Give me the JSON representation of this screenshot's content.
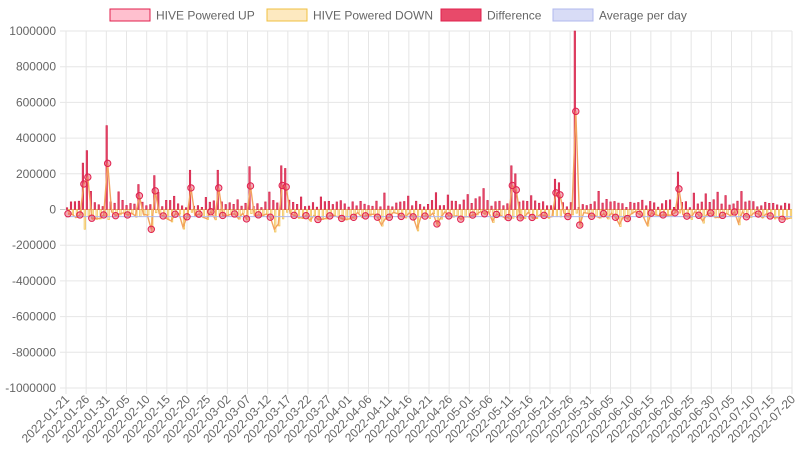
{
  "chart_data": {
    "type": "bar",
    "title": "",
    "xlabel": "",
    "ylabel": "",
    "ylim": [
      -1000000,
      1000000
    ],
    "y_ticks": [
      1000000,
      800000,
      600000,
      400000,
      200000,
      0,
      -200000,
      -400000,
      -600000,
      -800000,
      -1000000
    ],
    "y_tick_labels": [
      "1000000",
      "800000",
      "600000",
      "400000",
      "200000",
      "0",
      "-200000",
      "-400000",
      "-600000",
      "-800000",
      "-1000000"
    ],
    "x_tick_labels": [
      "2022-01-21",
      "2022-01-26",
      "2022-01-31",
      "2022-02-05",
      "2022-02-10",
      "2022-02-15",
      "2022-02-20",
      "2022-02-25",
      "2022-03-02",
      "2022-03-07",
      "2022-03-12",
      "2022-03-17",
      "2022-03-22",
      "2022-03-27",
      "2022-04-01",
      "2022-04-06",
      "2022-04-11",
      "2022-04-16",
      "2022-04-21",
      "2022-04-26",
      "2022-05-01",
      "2022-05-06",
      "2022-05-11",
      "2022-05-16",
      "2022-05-21",
      "2022-05-26",
      "2022-05-31",
      "2022-06-05",
      "2022-06-10",
      "2022-06-15",
      "2022-06-20",
      "2022-06-25",
      "2022-06-30",
      "2022-07-05",
      "2022-07-10",
      "2022-07-15",
      "2022-07-20"
    ],
    "grid": true,
    "legend_position": "top",
    "start_date": "2022-01-21",
    "num_days": 183,
    "series": [
      {
        "name": "HIVE Powered UP",
        "type": "bar",
        "color": "#e0204d",
        "fill": "#ffc0cf"
      },
      {
        "name": "HIVE Powered DOWN",
        "type": "bar",
        "color": "#f0c040",
        "fill": "#fde9c0"
      },
      {
        "name": "Difference",
        "type": "bar",
        "color": "#e0204d",
        "fill": "#e84a6a"
      },
      {
        "name": "Average per day",
        "type": "line",
        "color": "#b0b8ee",
        "fill": "#d8dcf6"
      }
    ],
    "average_value": -40000,
    "spikes_up": [
      {
        "date": "2022-01-25",
        "value": 260000
      },
      {
        "date": "2022-01-26",
        "value": 330000
      },
      {
        "date": "2022-01-31",
        "value": 470000
      },
      {
        "date": "2022-02-08",
        "value": 140000
      },
      {
        "date": "2022-02-12",
        "value": 190000
      },
      {
        "date": "2022-02-21",
        "value": 220000
      },
      {
        "date": "2022-02-28",
        "value": 220000
      },
      {
        "date": "2022-03-08",
        "value": 240000
      },
      {
        "date": "2022-03-16",
        "value": 245000
      },
      {
        "date": "2022-03-17",
        "value": 230000
      },
      {
        "date": "2022-05-13",
        "value": 245000
      },
      {
        "date": "2022-05-14",
        "value": 200000
      },
      {
        "date": "2022-05-24",
        "value": 170000
      },
      {
        "date": "2022-05-25",
        "value": 150000
      },
      {
        "date": "2022-05-29",
        "value": 1000000
      },
      {
        "date": "2022-06-24",
        "value": 210000
      }
    ]
  }
}
